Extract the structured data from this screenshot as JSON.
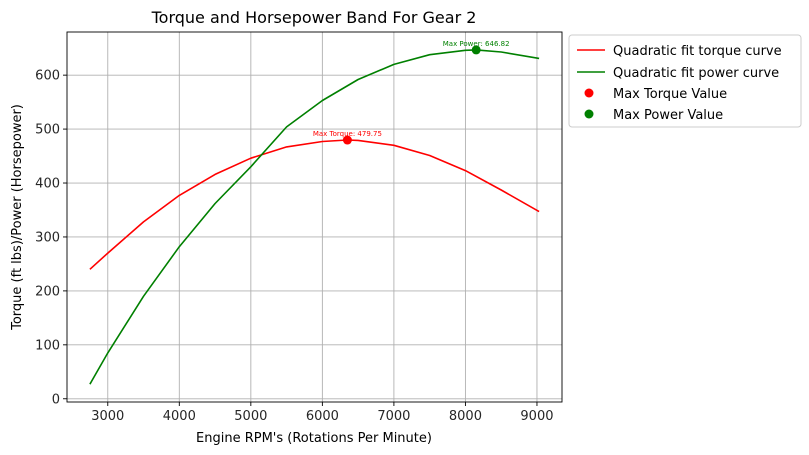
{
  "chart_data": {
    "type": "line",
    "title": "Torque and Horsepower Band For Gear 2",
    "xlabel": "Engine RPM's (Rotations Per Minute)",
    "ylabel": "Torque (ft lbs)/Power (Horsepower)",
    "xlim": [
      2430,
      9350
    ],
    "ylim": [
      -6,
      680
    ],
    "xticks": [
      3000,
      4000,
      5000,
      6000,
      7000,
      8000,
      9000
    ],
    "yticks": [
      0,
      100,
      200,
      300,
      400,
      500,
      600
    ],
    "grid": true,
    "legend_placement": "outside-upper-right",
    "series": [
      {
        "name": "Quadratic fit torque curve",
        "kind": "line",
        "color": "#ff0000",
        "x": [
          2750,
          3000,
          3500,
          4000,
          4500,
          5000,
          5500,
          6000,
          6350,
          6500,
          7000,
          7500,
          8000,
          8500,
          9030
        ],
        "y": [
          240,
          270,
          328,
          377,
          416,
          446,
          467,
          477,
          479.75,
          479,
          470,
          451,
          423,
          387,
          347
        ]
      },
      {
        "name": "Quadratic fit power curve",
        "kind": "line",
        "color": "#008000",
        "x": [
          2750,
          3000,
          3500,
          4000,
          4500,
          5000,
          5500,
          6000,
          6500,
          7000,
          7500,
          8000,
          8150,
          8500,
          9030
        ],
        "y": [
          27,
          85,
          190,
          282,
          362,
          430,
          504,
          553,
          592,
          620,
          638,
          646,
          646.82,
          643,
          631
        ]
      },
      {
        "name": "Max Torque Value",
        "kind": "scatter",
        "color": "#ff0000",
        "x": [
          6350
        ],
        "y": [
          479.75
        ],
        "annotation": "Max Torque: 479.75"
      },
      {
        "name": "Max Power Value",
        "kind": "scatter",
        "color": "#008000",
        "x": [
          8150
        ],
        "y": [
          646.82
        ],
        "annotation": "Max Power: 646.82"
      }
    ]
  }
}
